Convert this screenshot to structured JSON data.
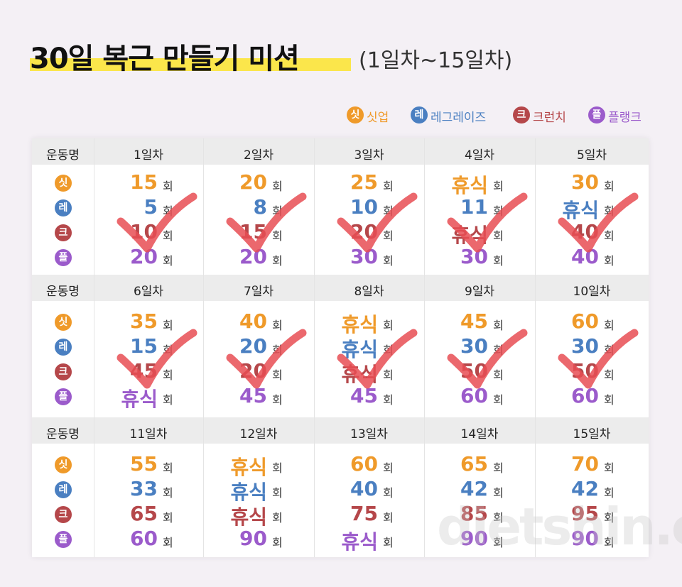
{
  "title": "30일 복근 만들기 미션",
  "subtitle": "(1일차~15일차)",
  "exercises": [
    {
      "icon": "싯",
      "name": "싯업",
      "color": "#ef9a2a"
    },
    {
      "icon": "레",
      "name": "레그레이즈",
      "color": "#4a7fc1"
    },
    {
      "icon": "크",
      "name": "크런치",
      "color": "#b5474a"
    },
    {
      "icon": "플",
      "name": "플랭크",
      "color": "#9b5bcb"
    }
  ],
  "table": {
    "unit": "회",
    "blocks": [
      {
        "header": "운동명",
        "checked": true,
        "days": [
          "1일차",
          "2일차",
          "3일차",
          "4일차",
          "5일차"
        ],
        "rows": [
          [
            15,
            20,
            25,
            "휴식",
            30
          ],
          [
            5,
            8,
            10,
            11,
            "휴식"
          ],
          [
            10,
            15,
            20,
            "휴식",
            40
          ],
          [
            20,
            20,
            30,
            30,
            40
          ]
        ]
      },
      {
        "header": "운동명",
        "checked": true,
        "days": [
          "6일차",
          "7일차",
          "8일차",
          "9일차",
          "10일차"
        ],
        "rows": [
          [
            35,
            40,
            "휴식",
            45,
            60
          ],
          [
            15,
            20,
            "휴식",
            30,
            30
          ],
          [
            45,
            20,
            "휴식",
            50,
            50
          ],
          [
            "휴식",
            45,
            45,
            60,
            60
          ]
        ]
      },
      {
        "header": "운동명",
        "checked": false,
        "days": [
          "11일차",
          "12일차",
          "13일차",
          "14일차",
          "15일차"
        ],
        "rows": [
          [
            55,
            "휴식",
            60,
            65,
            70
          ],
          [
            33,
            "휴식",
            40,
            42,
            42
          ],
          [
            65,
            "휴식",
            75,
            85,
            95
          ],
          [
            60,
            90,
            "휴식",
            90,
            90
          ]
        ]
      }
    ]
  },
  "watermark": "dietshin.com"
}
